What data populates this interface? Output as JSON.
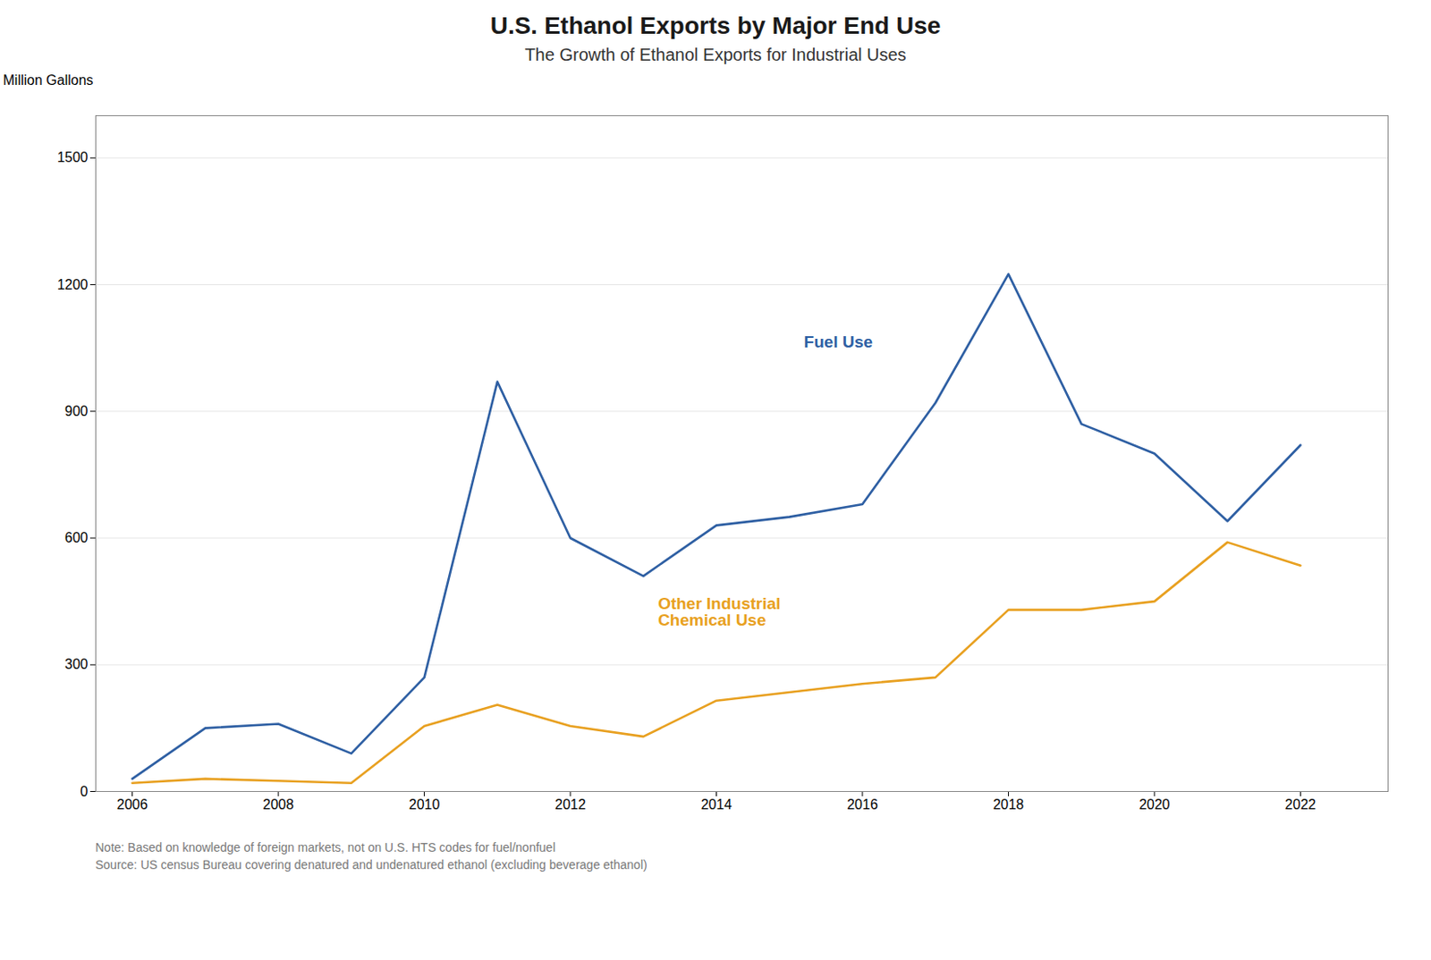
{
  "chart_data": {
    "type": "line",
    "title": "U.S. Ethanol Exports by Major End Use",
    "subtitle": "The Growth of Ethanol Exports for Industrial Uses",
    "ylabel": "Million Gallons",
    "notes": [
      "Note: Based on knowledge of foreign markets, not on U.S. HTS codes for fuel/nonfuel",
      "Source: US census Bureau covering denatured and undenatured ethanol (excluding beverage ethanol)"
    ],
    "x": [
      2006,
      2007,
      2008,
      2009,
      2010,
      2011,
      2012,
      2013,
      2014,
      2015,
      2016,
      2017,
      2018,
      2019,
      2020,
      2021,
      2022
    ],
    "series": [
      {
        "name": "Fuel Use",
        "color": "#2E5FA3",
        "values": [
          30,
          150,
          160,
          90,
          270,
          970,
          600,
          510,
          630,
          650,
          680,
          920,
          1225,
          870,
          800,
          640,
          820
        ]
      },
      {
        "name": "Other Industrial\nChemical Use",
        "color": "#E8A020",
        "values": [
          20,
          30,
          25,
          20,
          155,
          205,
          155,
          130,
          215,
          235,
          255,
          270,
          430,
          430,
          450,
          590,
          535
        ]
      }
    ],
    "annotations": [
      {
        "text": "Fuel Use",
        "x": 2015.2,
        "y": 1080,
        "color": "#2E5FA3"
      },
      {
        "text": "Other Industrial\nChemical Use",
        "x": 2013.2,
        "y": 460,
        "color": "#E8A020"
      }
    ],
    "xlim": [
      2005.5,
      2023.2
    ],
    "xticks": [
      2006,
      2008,
      2010,
      2012,
      2014,
      2016,
      2018,
      2020,
      2022
    ],
    "ylim": [
      0,
      1600
    ],
    "yticks": [
      0,
      300,
      600,
      900,
      1200,
      1500
    ],
    "grid": true
  }
}
